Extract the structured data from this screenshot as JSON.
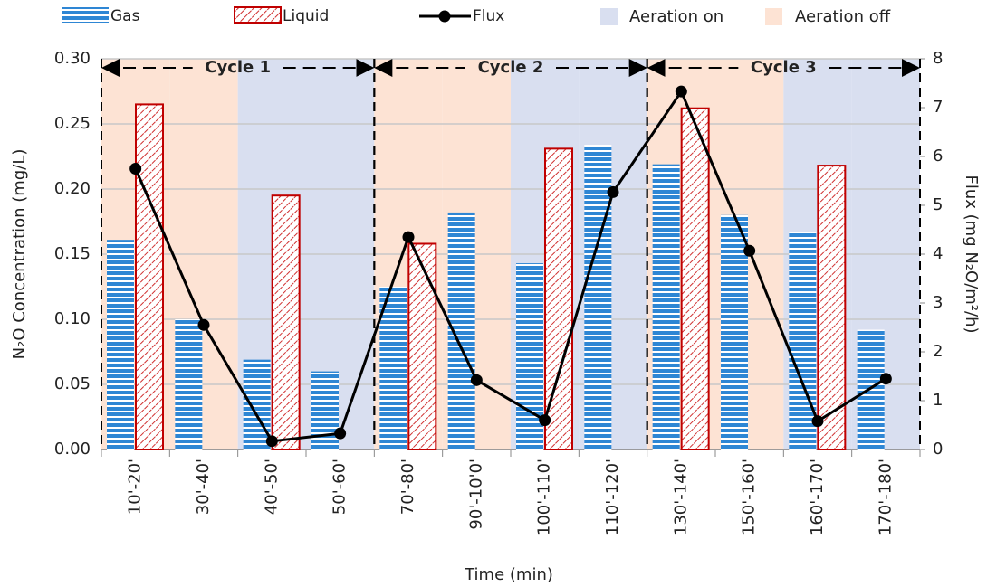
{
  "chart_data": {
    "type": "bar",
    "x_label": "Time (min)",
    "y_label": "N₂O Concentration (mg/L)",
    "y2_label": "Flux (mg N₂O/m²/h)",
    "categories": [
      "10'-20'",
      "30'-40'",
      "40'-50'",
      "50'-60'",
      "70'-80'",
      "90'-10'0'",
      "100'-110'",
      "110'-120'",
      "130'-140'",
      "150'-160'",
      "160'-170'",
      "170'-180'"
    ],
    "series": [
      {
        "name": "Gas",
        "color": "#2e86d4",
        "values": [
          0.161,
          0.1,
          0.069,
          0.06,
          0.125,
          0.182,
          0.143,
          0.234,
          0.219,
          0.18,
          0.167,
          0.092
        ]
      },
      {
        "name": "Liquid",
        "color": "#c00000",
        "values": [
          0.265,
          null,
          0.195,
          null,
          0.158,
          null,
          0.231,
          null,
          0.262,
          null,
          0.218,
          null
        ]
      },
      {
        "name": "Flux",
        "type": "line",
        "axis": "y2",
        "color": "#000000",
        "values": [
          5.75,
          2.55,
          0.17,
          0.33,
          4.35,
          1.42,
          0.6,
          5.27,
          7.33,
          4.07,
          0.58,
          1.45
        ]
      }
    ],
    "ylim": [
      0,
      0.3
    ],
    "yticks": [
      {
        "value": 0,
        "label": "0.00"
      },
      {
        "value": 0.05,
        "label": "0.05"
      },
      {
        "value": 0.1,
        "label": "0.10"
      },
      {
        "value": 0.15,
        "label": "0.15"
      },
      {
        "value": 0.2,
        "label": "0.20"
      },
      {
        "value": 0.25,
        "label": "0.25"
      },
      {
        "value": 0.3,
        "label": "0.30"
      }
    ],
    "y2lim": [
      0,
      8
    ],
    "y2ticks": [
      0,
      1,
      2,
      3,
      4,
      5,
      6,
      7,
      8
    ],
    "grid": true,
    "shading": [
      {
        "name": "Aeration on",
        "color": "#d9dff0"
      },
      {
        "name": "Aeration off",
        "color": "#fde3d4"
      }
    ],
    "shading_by_category": [
      1,
      1,
      0,
      0,
      1,
      1,
      0,
      0,
      1,
      1,
      0,
      0
    ],
    "cycles": [
      {
        "label": "Cycle 1",
        "start": 0,
        "end": 3
      },
      {
        "label": "Cycle 2",
        "start": 4,
        "end": 7
      },
      {
        "label": "Cycle 3",
        "start": 8,
        "end": 11
      }
    ]
  }
}
